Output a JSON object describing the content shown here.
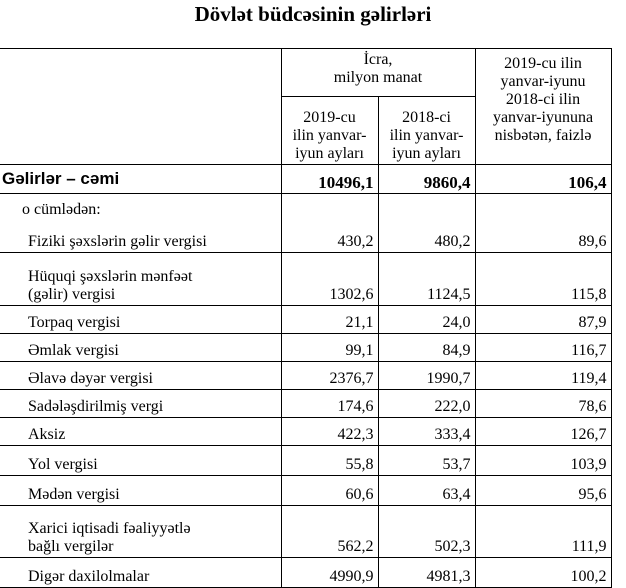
{
  "title": "Dövlət büdcəsinin gəlirləri",
  "header": {
    "execution": "İcra,\nmilyon manat",
    "col_2019": "2019-cu\nilin yanvar-\niyun ayları",
    "col_2018": "2018-ci\nilin yanvar-\niyun ayları",
    "col_ratio": "2019-cu ilin\nyanvar-iyunu\n2018-ci ilin\nyanvar-iyununa\nnisbətən, faizlə"
  },
  "total": {
    "label": "Gəlirlər – cəmi",
    "v2019": "10496,1",
    "v2018": "9860,4",
    "ratio": "106,4"
  },
  "including_label": "o cümlədən:",
  "rows": [
    {
      "label": "Fiziki şəxslərin gəlir vergisi",
      "v2019": "430,2",
      "v2018": "480,2",
      "ratio": "89,6"
    },
    {
      "label": "Hüquqi şəxslərin mənfəət\n(gəlir) vergisi",
      "v2019": "1302,6",
      "v2018": "1124,5",
      "ratio": "115,8"
    },
    {
      "label": "Torpaq vergisi",
      "v2019": "21,1",
      "v2018": "24,0",
      "ratio": "87,9"
    },
    {
      "label": "Əmlak vergisi",
      "v2019": "99,1",
      "v2018": "84,9",
      "ratio": "116,7"
    },
    {
      "label": "Əlavə dəyər vergisi",
      "v2019": "2376,7",
      "v2018": "1990,7",
      "ratio": "119,4"
    },
    {
      "label": "Sadələşdirilmiş vergi",
      "v2019": "174,6",
      "v2018": "222,0",
      "ratio": "78,6"
    },
    {
      "label": "Aksiz",
      "v2019": "422,3",
      "v2018": "333,4",
      "ratio": "126,7"
    },
    {
      "label": "Yol vergisi",
      "v2019": "55,8",
      "v2018": "53,7",
      "ratio": "103,9"
    },
    {
      "label": "Mədən vergisi",
      "v2019": "60,6",
      "v2018": "63,4",
      "ratio": "95,6"
    },
    {
      "label": "Xarici iqtisadi fəaliyyətlə\nbağlı vergilər",
      "v2019": "562,2",
      "v2018": "502,3",
      "ratio": "111,9"
    },
    {
      "label": "Digər daxilolmalar",
      "v2019": "4990,9",
      "v2018": "4981,3",
      "ratio": "100,2"
    }
  ]
}
